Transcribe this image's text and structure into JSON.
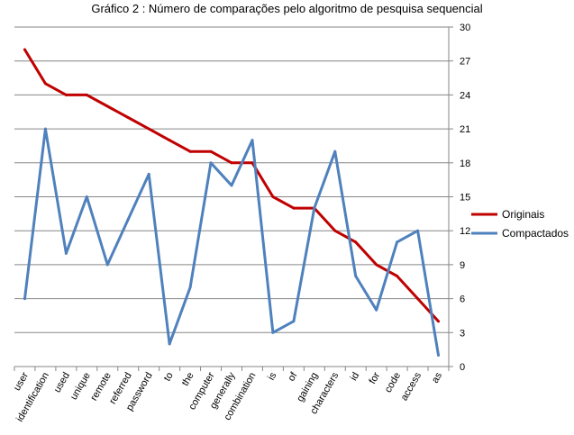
{
  "chart_data": {
    "type": "line",
    "title": "Gráfico 2 : Número de comparações pelo algoritmo de pesquisa sequencial",
    "xlabel": "",
    "ylabel": "",
    "ylim": [
      0,
      30
    ],
    "yticks": [
      0,
      3,
      6,
      9,
      12,
      15,
      18,
      21,
      24,
      27,
      30
    ],
    "y_axis_side": "right",
    "grid": "horizontal",
    "legend_position": "right",
    "categories": [
      "user",
      "identification",
      "used",
      "unique",
      "remote",
      "referred",
      "password",
      "to",
      "the",
      "computer",
      "generally",
      "combination",
      "is",
      "of",
      "gaining",
      "characters",
      "id",
      "for",
      "code",
      "access",
      "as"
    ],
    "series": [
      {
        "name": "Originais",
        "color": "#C00000",
        "values": [
          28,
          25,
          24,
          24,
          23,
          22,
          21,
          20,
          19,
          19,
          18,
          18,
          15,
          14,
          14,
          12,
          11,
          9,
          8,
          6,
          4
        ]
      },
      {
        "name": "Compactados",
        "color": "#4F81BD",
        "values": [
          6,
          21,
          10,
          15,
          9,
          13,
          17,
          2,
          7,
          18,
          16,
          20,
          3,
          4,
          14,
          19,
          8,
          5,
          11,
          12,
          1
        ]
      }
    ]
  }
}
